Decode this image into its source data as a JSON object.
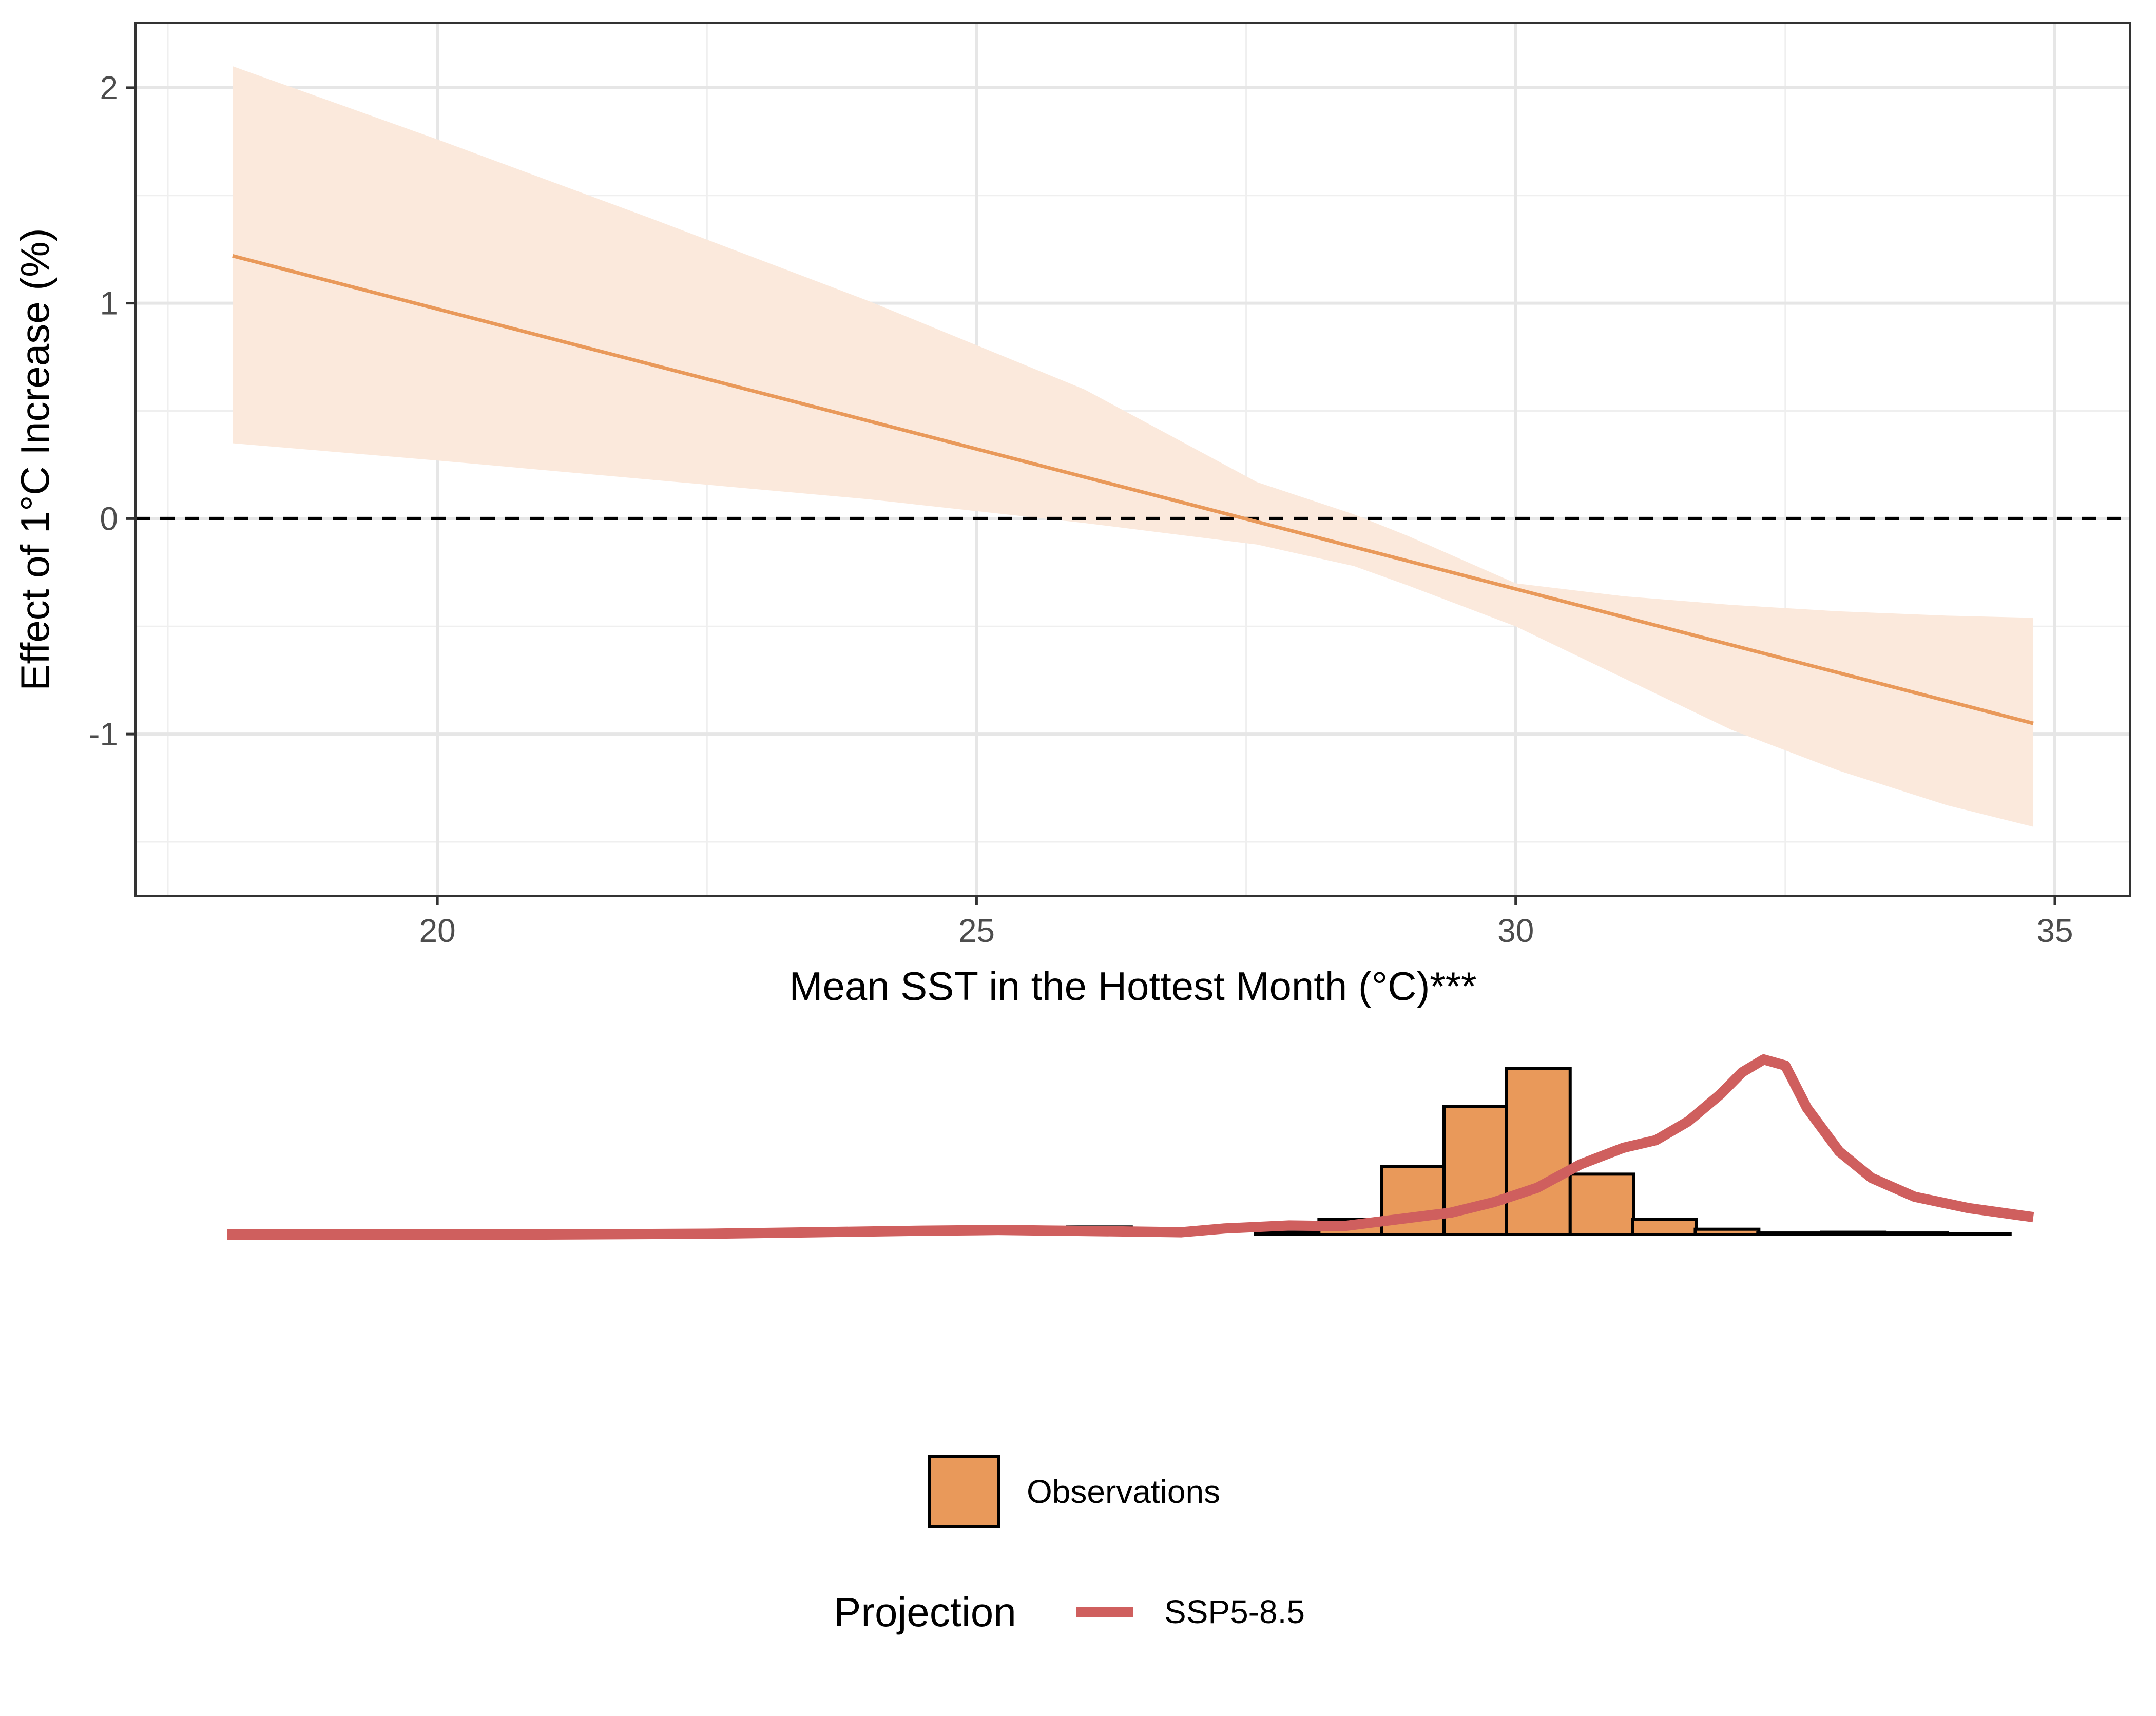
{
  "chart_data": [
    {
      "type": "line",
      "xlabel": "Mean SST in the Hottest Month (°C)***",
      "ylabel": "Effect of 1°C Increase (%)",
      "xlim": [
        17.2,
        35.7
      ],
      "ylim": [
        -1.75,
        2.3
      ],
      "x_ticks": [
        20,
        25,
        30,
        35
      ],
      "x_tick_labels": [
        "20",
        "25",
        "30",
        "35"
      ],
      "y_ticks": [
        -1,
        0,
        1,
        2
      ],
      "y_tick_labels": [
        "-1",
        "0",
        "1",
        "2"
      ],
      "grid": true,
      "reference_line": {
        "y": 0,
        "style": "dashed",
        "color": "#000000"
      },
      "series": [
        {
          "x": [
            18.1,
            34.8
          ],
          "y": [
            1.22,
            -0.95
          ],
          "lower": [
            0.35,
            -1.43
          ],
          "upper": [
            2.1,
            -0.46
          ],
          "color": "#E9995A",
          "band_color": "#FBE9DC"
        }
      ],
      "band": {
        "x": [
          18.1,
          20,
          22,
          24,
          26,
          27.6,
          28.5,
          29,
          30,
          31,
          32,
          33,
          34,
          34.8
        ],
        "lower": [
          0.35,
          0.27,
          0.18,
          0.09,
          -0.02,
          -0.12,
          -0.22,
          -0.31,
          -0.5,
          -0.74,
          -0.98,
          -1.17,
          -1.33,
          -1.43
        ],
        "upper": [
          2.1,
          1.76,
          1.39,
          1.01,
          0.6,
          0.17,
          0.02,
          -0.08,
          -0.3,
          -0.36,
          -0.4,
          -0.43,
          -0.45,
          -0.46
        ]
      }
    },
    {
      "type": "bar",
      "x": [
        24.97,
        25.56,
        26.14,
        26.72,
        27.3,
        27.88,
        28.47,
        29.05,
        29.63,
        30.21,
        30.8,
        31.38,
        31.96,
        32.54,
        33.13,
        33.71,
        34.29
      ],
      "values": [
        0,
        0,
        0.01,
        0.0,
        0.0,
        0.003,
        0.02,
        0.09,
        0.17,
        0.22,
        0.08,
        0.02,
        0.007,
        0.002,
        0.003,
        0.002,
        0.001
      ],
      "series_name": "Observations",
      "color": "#E9995A"
    },
    {
      "type": "line",
      "x": [
        18.05,
        19.5,
        21,
        22.5,
        23.5,
        24.5,
        25.2,
        25.8,
        26.4,
        26.9,
        27.3,
        27.9,
        28.4,
        28.9,
        29.4,
        29.8,
        30.2,
        30.6,
        31.0,
        31.3,
        31.6,
        31.9,
        32.1,
        32.3,
        32.5,
        32.7,
        33.0,
        33.3,
        33.7,
        34.2,
        34.8
      ],
      "y": [
        0.0,
        0.0,
        0.0,
        0.001,
        0.003,
        0.005,
        0.006,
        0.005,
        0.004,
        0.003,
        0.008,
        0.012,
        0.011,
        0.02,
        0.029,
        0.043,
        0.062,
        0.093,
        0.115,
        0.125,
        0.15,
        0.186,
        0.215,
        0.232,
        0.224,
        0.168,
        0.11,
        0.075,
        0.05,
        0.035,
        0.023
      ],
      "series_name": "SSP5-8.5",
      "color": "#CF5F5E"
    }
  ],
  "legend": {
    "observations_label": "Observations",
    "projection_title": "Projection",
    "projection_label": "SSP5-8.5"
  }
}
